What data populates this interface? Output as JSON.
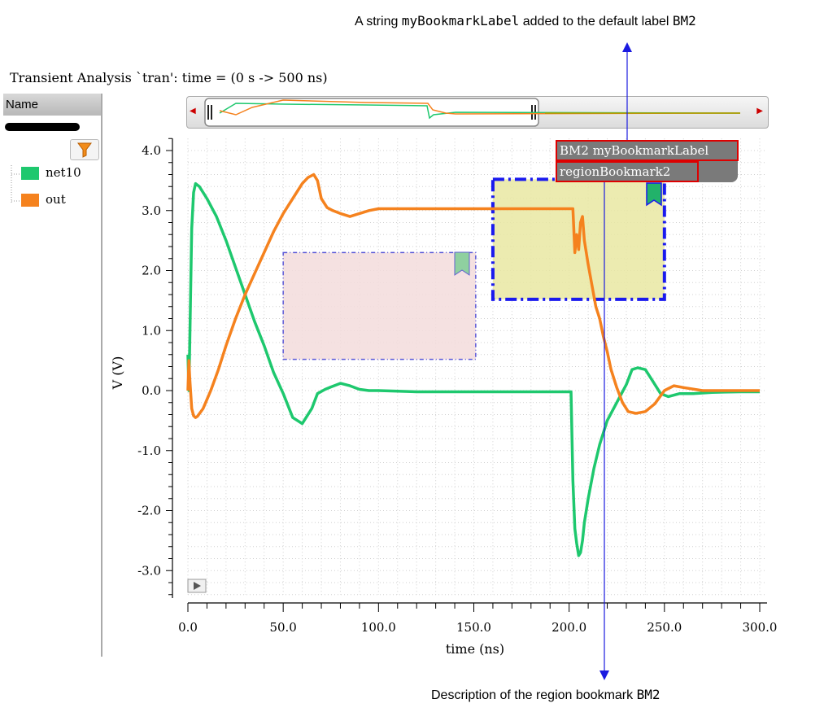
{
  "plot_title": "Transient Analysis `tran': time = (0 s -> 500 ns)",
  "name_panel": {
    "header": "Name"
  },
  "legend": [
    {
      "name": "net10",
      "color": "#1ec86e"
    },
    {
      "name": "out",
      "color": "#f5821e"
    }
  ],
  "annotations": {
    "top": {
      "prefix": "A string ",
      "code": "myBookmarkLabel",
      "suffix": " added to the default label ",
      "code2": "BM2"
    },
    "bottom": {
      "prefix": "Description of the region bookmark ",
      "code": "BM2"
    }
  },
  "bookmark_tags": {
    "label": "BM2 myBookmarkLabel",
    "description": "regionBookmark2"
  },
  "chart_data": {
    "type": "line",
    "xlabel": "time (ns)",
    "ylabel": "V (V)",
    "xlim": [
      0,
      300
    ],
    "ylim": [
      -3.4,
      4.2
    ],
    "x_ticks": [
      "0.0",
      "50.0",
      "100.0",
      "150.0",
      "200.0",
      "250.0",
      "300.0"
    ],
    "y_ticks": [
      "4.0",
      "3.0",
      "2.0",
      "1.0",
      "0.0",
      "-1.0",
      "-2.0",
      "-3.0"
    ],
    "grid": true,
    "series": [
      {
        "name": "net10",
        "color": "#1ec86e",
        "x": [
          0,
          0.5,
          1,
          2,
          3,
          4,
          6,
          10,
          15,
          20,
          25,
          30,
          35,
          40,
          45,
          50,
          55,
          60,
          65,
          68,
          72,
          75,
          80,
          85,
          90,
          95,
          100,
          120,
          150,
          180,
          201,
          202,
          203,
          204,
          205,
          206,
          207,
          208,
          210,
          213,
          216,
          220,
          225,
          230,
          233,
          236,
          240,
          244,
          248,
          252,
          258,
          265,
          275,
          290,
          300
        ],
        "y": [
          0.6,
          0.0,
          0.8,
          2.7,
          3.3,
          3.45,
          3.4,
          3.2,
          2.9,
          2.5,
          2.05,
          1.6,
          1.15,
          0.75,
          0.3,
          -0.05,
          -0.45,
          -0.55,
          -0.3,
          -0.05,
          0.02,
          0.06,
          0.12,
          0.08,
          0.02,
          0.0,
          0.0,
          -0.02,
          -0.02,
          -0.02,
          -0.02,
          -1.5,
          -2.3,
          -2.55,
          -2.75,
          -2.7,
          -2.5,
          -2.2,
          -1.8,
          -1.3,
          -0.9,
          -0.5,
          -0.2,
          0.1,
          0.35,
          0.38,
          0.35,
          0.15,
          -0.05,
          -0.1,
          -0.05,
          -0.05,
          -0.03,
          -0.02,
          -0.02
        ]
      },
      {
        "name": "out",
        "color": "#f5821e",
        "x": [
          0,
          0.5,
          1,
          2,
          3,
          4,
          5,
          8,
          12,
          16,
          20,
          25,
          30,
          35,
          40,
          45,
          50,
          55,
          60,
          63,
          66,
          68,
          70,
          73,
          76,
          80,
          85,
          90,
          95,
          100,
          130,
          160,
          190,
          202,
          203,
          204,
          205,
          206,
          207,
          208,
          210,
          212,
          214,
          216,
          218,
          220,
          222,
          225,
          228,
          231,
          235,
          240,
          245,
          250,
          255,
          260,
          270,
          280,
          300
        ],
        "y": [
          0.0,
          0.5,
          0.2,
          -0.3,
          -0.42,
          -0.45,
          -0.43,
          -0.3,
          0.0,
          0.35,
          0.75,
          1.2,
          1.6,
          1.95,
          2.3,
          2.65,
          2.95,
          3.2,
          3.45,
          3.55,
          3.6,
          3.5,
          3.2,
          3.05,
          3.0,
          2.95,
          2.9,
          2.95,
          3.0,
          3.03,
          3.03,
          3.03,
          3.03,
          3.03,
          2.3,
          2.6,
          2.35,
          2.8,
          2.9,
          2.5,
          2.1,
          1.75,
          1.4,
          1.2,
          0.9,
          0.65,
          0.35,
          0.05,
          -0.2,
          -0.35,
          -0.38,
          -0.35,
          -0.22,
          0.0,
          0.08,
          0.05,
          0.0,
          0.0,
          0.0
        ]
      }
    ],
    "bookmarks": [
      {
        "type": "region",
        "x_range": [
          50,
          151
        ],
        "y_range": [
          0.52,
          2.3
        ],
        "fill": "#f3dcdc",
        "border": "#5a58d8"
      },
      {
        "type": "region",
        "label": "BM2 myBookmarkLabel",
        "description": "regionBookmark2",
        "x_range": [
          160,
          250
        ],
        "y_range": [
          1.52,
          3.52
        ],
        "fill": "#e9e7a2",
        "border": "#1a1aee",
        "selected": true
      }
    ]
  }
}
